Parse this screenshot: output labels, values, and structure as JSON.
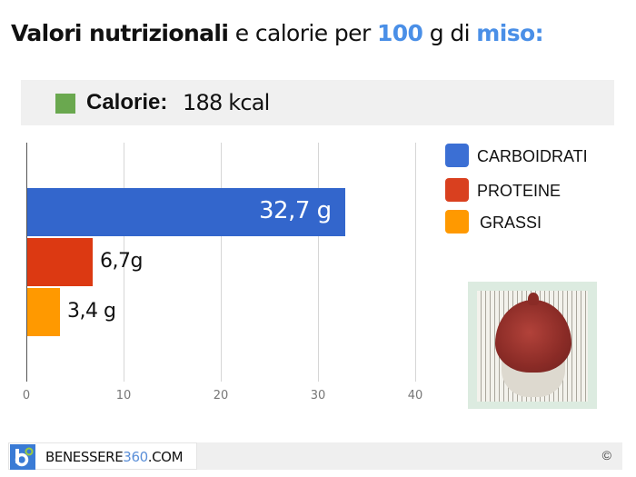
{
  "header": {
    "title_bold": "Valori nutrizionali",
    "title_mid": " e calorie per ",
    "title_amount": "100",
    "title_unit": " g di ",
    "title_food": "miso:"
  },
  "calories": {
    "label": "Calorie:",
    "value": "188 kcal",
    "swatch_color": "#6aa84f"
  },
  "legend": {
    "items": [
      {
        "label": "CARBOIDRATI",
        "color": "#3b6fd4"
      },
      {
        "label": "PROTEINE",
        "color": "#d9401f"
      },
      {
        "label": "GRASSI",
        "color": "#ff9900"
      }
    ]
  },
  "chart_data": {
    "type": "bar",
    "orientation": "horizontal",
    "title": "Valori nutrizionali e calorie per 100 g di miso",
    "categories": [
      "CARBOIDRATI",
      "PROTEINE",
      "GRASSI"
    ],
    "values": [
      32.7,
      6.7,
      3.4
    ],
    "value_labels": [
      "32,7 g",
      "6,7g",
      "3,4 g"
    ],
    "colors": [
      "#3366cc",
      "#dc3912",
      "#ff9900"
    ],
    "unit": "g",
    "xlabel": "",
    "ylabel": "",
    "xlim": [
      0,
      40
    ],
    "xticks": [
      "0",
      "10",
      "20",
      "30",
      "40"
    ],
    "grid": true,
    "legend_position": "right",
    "annotation": "Calorie: 188 kcal"
  },
  "image": {
    "alt": "miso paste in bowl"
  },
  "footer": {
    "brand_prefix": "BENESSERE",
    "brand_number": "360",
    "brand_suffix": ".COM",
    "copyright": "©"
  }
}
